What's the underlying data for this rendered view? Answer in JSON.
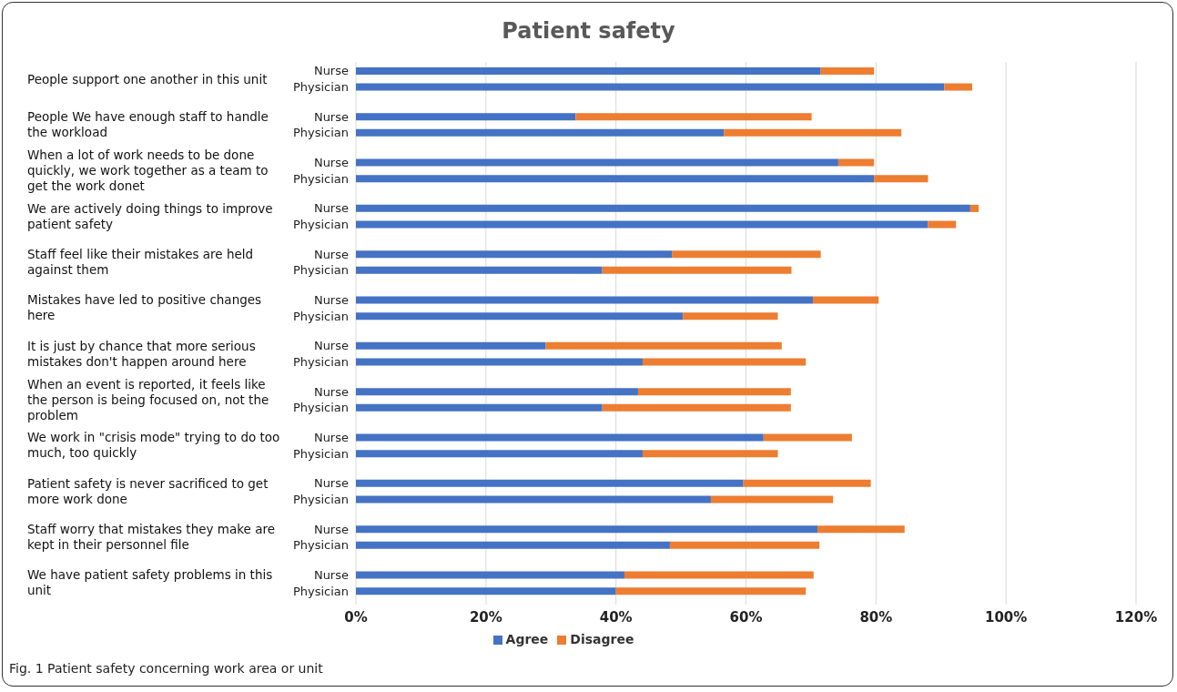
{
  "chart_data": {
    "type": "bar",
    "orientation": "horizontal",
    "stacked": true,
    "title": "Patient safety",
    "categories": [
      "Nurse",
      "Physician",
      "Nurse",
      "Physician",
      "Nurse",
      "Physician",
      "Nurse",
      "Physician",
      "Nurse",
      "Physician",
      "Nurse",
      "Physician",
      "Nurse",
      "Physician",
      "Nurse",
      "Physician",
      "Nurse",
      "Physician",
      "Nurse",
      "Physician",
      "Nurse",
      "Physician",
      "Nurse",
      "Physician"
    ],
    "series": [
      {
        "name": "Agree",
        "color": "#4472c4",
        "values": [
          71.5,
          90.5,
          33.8,
          56.6,
          74.2,
          79.7,
          94.5,
          88,
          48.6,
          37.9,
          70.3,
          50.3,
          29.2,
          44.1,
          43.4,
          37.9,
          62.7,
          44.1,
          59.6,
          54.6,
          71,
          48.3,
          41.3,
          40
        ]
      },
      {
        "name": "Disagree",
        "color": "#ed7d31",
        "values": [
          8.2,
          4.3,
          36.3,
          27.3,
          5.5,
          8.3,
          1.3,
          4.3,
          22.9,
          29.1,
          10.1,
          14.6,
          36.3,
          25.1,
          23.5,
          29,
          13.6,
          20.8,
          19.6,
          18.8,
          13.4,
          23,
          29.1,
          29.2
        ]
      }
    ],
    "xlim": [
      0,
      120
    ],
    "xticks": [
      {
        "value": 0,
        "label": "0%"
      },
      {
        "value": 20,
        "label": "20%"
      },
      {
        "value": 40,
        "label": "40%"
      },
      {
        "value": 60,
        "label": "60%"
      },
      {
        "value": 80,
        "label": "80%"
      },
      {
        "value": 100,
        "label": "100%"
      },
      {
        "value": 120,
        "label": "120%"
      }
    ],
    "grid": "x",
    "legend": "bottom",
    "annotations": [
      "People support one another in this unit",
      "People We have enough staff to handle the workload",
      "When a lot of work needs to be done quickly, we work together as a team to get the work donet",
      "We are actively doing things to improve patient safety",
      "Staff feel like their mistakes are held against them",
      "Mistakes have led to positive changes here",
      "It is just by chance that more serious mistakes don't happen around here",
      "When an event is reported, it feels like the person is being focused on, not the problem",
      "We work in \"crisis mode\" trying to do too much, too quickly",
      "Patient safety is never sacrificed to get more work done",
      "Staff worry that mistakes they make are kept in their personnel file",
      "We have patient safety problems in this unit",
      "Fig. 1 Patient safety concerning work area or unit"
    ]
  }
}
